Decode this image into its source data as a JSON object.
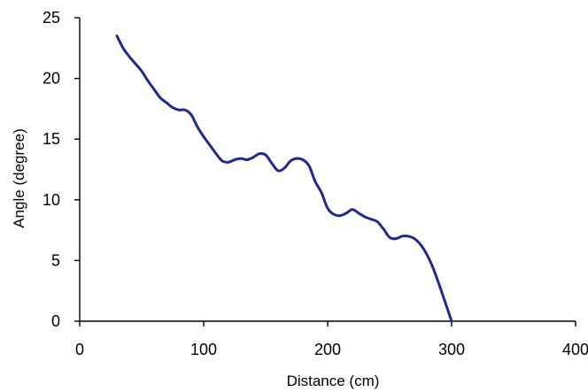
{
  "chart_data": {
    "type": "line",
    "title": "",
    "xlabel": "Distance (cm)",
    "ylabel": "Angle (degree)",
    "xlim": [
      0,
      400
    ],
    "ylim": [
      0,
      25
    ],
    "x_ticks": [
      0,
      100,
      200,
      300,
      400
    ],
    "y_ticks": [
      0,
      5,
      10,
      15,
      20,
      25
    ],
    "x_tick_labels": [
      "0",
      "100",
      "200",
      "300",
      "400"
    ],
    "y_tick_labels": [
      "0",
      "5",
      "10",
      "15",
      "20",
      "25"
    ],
    "grid": false,
    "legend": "none",
    "series": [
      {
        "color": "#1f2a8c",
        "x": [
          30,
          35,
          40,
          45,
          50,
          55,
          60,
          65,
          70,
          75,
          80,
          85,
          90,
          95,
          100,
          105,
          110,
          115,
          120,
          125,
          130,
          135,
          140,
          145,
          150,
          155,
          160,
          165,
          170,
          175,
          180,
          185,
          190,
          195,
          200,
          205,
          210,
          215,
          220,
          225,
          230,
          235,
          240,
          245,
          250,
          255,
          260,
          265,
          270,
          275,
          280,
          285,
          290,
          295,
          300
        ],
        "y": [
          23.5,
          22.5,
          21.8,
          21.2,
          20.6,
          19.8,
          19.1,
          18.4,
          18.0,
          17.6,
          17.4,
          17.4,
          17.0,
          16.0,
          15.2,
          14.5,
          13.8,
          13.2,
          13.1,
          13.3,
          13.4,
          13.3,
          13.5,
          13.8,
          13.7,
          13.0,
          12.4,
          12.6,
          13.2,
          13.4,
          13.3,
          12.8,
          11.5,
          10.6,
          9.3,
          8.8,
          8.7,
          8.9,
          9.2,
          8.9,
          8.6,
          8.4,
          8.2,
          7.6,
          6.9,
          6.8,
          7.0,
          7.0,
          6.8,
          6.3,
          5.5,
          4.4,
          3.0,
          1.5,
          0.0
        ]
      }
    ]
  }
}
